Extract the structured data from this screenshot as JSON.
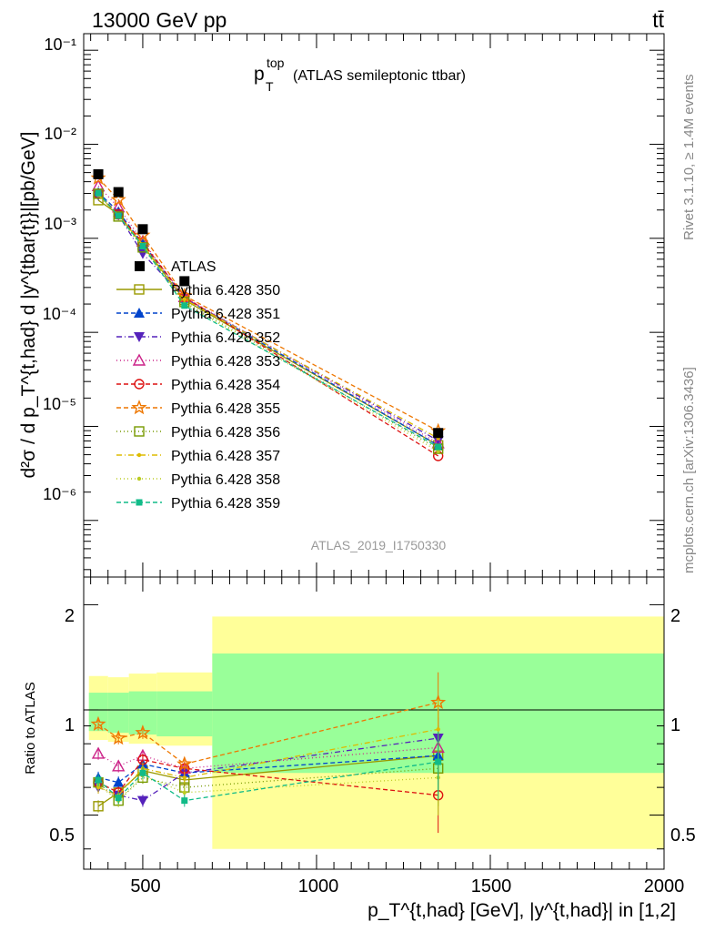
{
  "header": {
    "energy": "13000 GeV pp",
    "process": "tt̄",
    "rivet": "Rivet 3.1.10, ≥ 1.4M events",
    "site": "mcplots.cern.ch [arXiv:1306.3436]",
    "analysis": "ATLAS_2019_I1750330"
  },
  "main_plot": {
    "title_base": "p",
    "title_sup": "top",
    "title_sub": "T",
    "title_rest": "(ATLAS semileptonic ttbar)",
    "ylabel": "d²σ / d p_T^{t,had} d |y^{tbar{t}}|[pb/GeV]",
    "y_tick_labels": [
      "10⁻⁶",
      "10⁻⁵",
      "10⁻⁴",
      "10⁻³",
      "10⁻²",
      "10⁻¹"
    ]
  },
  "ratio_plot": {
    "ylabel": "Ratio to ATLAS",
    "y_tick_labels": [
      "0.5",
      "1",
      "2"
    ],
    "x_tick_labels": [
      "500",
      "1000",
      "1500",
      "2000"
    ],
    "xlabel": "p_T^{t,had} [GeV], |y^{t,had}| in [1,2]"
  },
  "chart_data": {
    "type": "scatter",
    "x_scale": "linear",
    "y_scale": "log",
    "xlim": [
      330,
      2000
    ],
    "ylim_main": [
      2.5e-07,
      0.15
    ],
    "ylim_ratio": [
      0.35,
      2.4
    ],
    "bin_edges": [
      345,
      400,
      460,
      540,
      700,
      2000
    ],
    "x": [
      372,
      430,
      500,
      620,
      1350
    ],
    "data": {
      "name": "ATLAS",
      "color": "#000000",
      "values": [
        0.0048,
        0.0031,
        0.00125,
        0.00035,
        8.5e-06
      ]
    },
    "band_inner": [
      {
        "x0": 345,
        "x1": 400,
        "lo": 0.87,
        "hi": 1.12
      },
      {
        "x0": 400,
        "x1": 460,
        "lo": 0.86,
        "hi": 1.12
      },
      {
        "x0": 460,
        "x1": 540,
        "lo": 0.85,
        "hi": 1.13
      },
      {
        "x0": 540,
        "x1": 700,
        "lo": 0.84,
        "hi": 1.13
      },
      {
        "x0": 700,
        "x1": 2000,
        "lo": 0.66,
        "hi": 1.45
      }
    ],
    "band_outer": [
      {
        "x0": 345,
        "x1": 400,
        "lo": 0.82,
        "hi": 1.25
      },
      {
        "x0": 400,
        "x1": 460,
        "lo": 0.81,
        "hi": 1.24
      },
      {
        "x0": 460,
        "x1": 540,
        "lo": 0.8,
        "hi": 1.27
      },
      {
        "x0": 540,
        "x1": 700,
        "lo": 0.79,
        "hi": 1.28
      },
      {
        "x0": 700,
        "x1": 2000,
        "lo": 0.4,
        "hi": 1.85
      }
    ],
    "series": [
      {
        "name": "Pythia 6.428 350",
        "color": "#999900",
        "marker": "open-square",
        "dash": "",
        "ratio": [
          0.53,
          0.58,
          0.67,
          0.63,
          0.74
        ]
      },
      {
        "name": "Pythia 6.428 351",
        "color": "#0044cc",
        "marker": "tri-up",
        "dash": "5,3",
        "ratio": [
          0.64,
          0.62,
          0.7,
          0.66,
          0.74
        ]
      },
      {
        "name": "Pythia 6.428 352",
        "color": "#5522bb",
        "marker": "tri-down",
        "dash": "6,3,1,3",
        "ratio": [
          0.6,
          0.57,
          0.55,
          0.66,
          0.83
        ]
      },
      {
        "name": "Pythia 6.428 353",
        "color": "#cc2288",
        "marker": "open-tri",
        "dash": "1,3",
        "ratio": [
          0.75,
          0.69,
          0.74,
          0.68,
          0.78
        ]
      },
      {
        "name": "Pythia 6.428 354",
        "color": "#dd1111",
        "marker": "open-circle",
        "dash": "5,3",
        "ratio": [
          0.62,
          0.58,
          0.72,
          0.68,
          0.57
        ]
      },
      {
        "name": "Pythia 6.428 355",
        "color": "#ee7700",
        "marker": "open-star",
        "dash": "5,3",
        "ratio": [
          0.91,
          0.83,
          0.86,
          0.7,
          1.05
        ]
      },
      {
        "name": "Pythia 6.428 356",
        "color": "#779900",
        "marker": "open-square",
        "dash": "1,3",
        "ratio": [
          0.62,
          0.55,
          0.64,
          0.6,
          0.68
        ]
      },
      {
        "name": "Pythia 6.428 357",
        "color": "#ddbb00",
        "marker": "dot",
        "dash": "6,3,1,3",
        "ratio": [
          0.6,
          0.57,
          0.68,
          0.64,
          0.88
        ]
      },
      {
        "name": "Pythia 6.428 358",
        "color": "#bbcc22",
        "marker": "dot",
        "dash": "1,3",
        "ratio": [
          0.61,
          0.55,
          0.65,
          0.58,
          0.64
        ]
      },
      {
        "name": "Pythia 6.428 359",
        "color": "#11bb88",
        "marker": "filled-square",
        "dash": "5,3",
        "ratio": [
          0.63,
          0.56,
          0.66,
          0.55,
          0.71
        ]
      }
    ]
  }
}
